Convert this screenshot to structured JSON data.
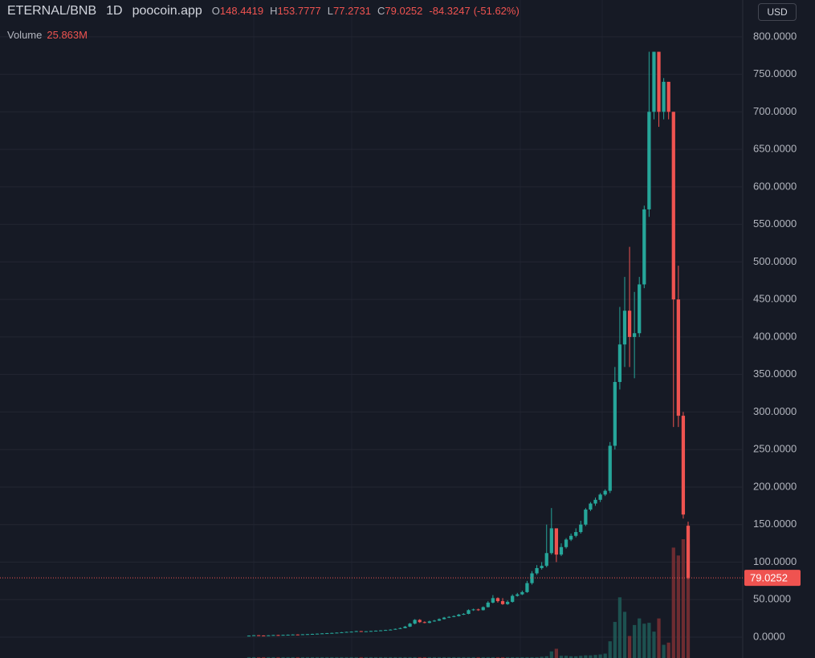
{
  "chart_data": {
    "type": "candlestick",
    "symbol": "ETERNAL/BNB",
    "interval": "1D",
    "source": "poocoin.app",
    "ohlc_labels": [
      "O",
      "H",
      "L",
      "C"
    ],
    "change": -84.3247,
    "change_percent": {
      "value": -51.62,
      "label": "(-51.62%)"
    },
    "currency": "USD",
    "up_color": "#26a69a",
    "down_color": "#ef5350",
    "open": [
      1.8,
      2,
      2.5,
      2.2,
      2,
      2.4,
      2.8,
      2.5,
      3,
      3.2,
      3.5,
      3.3,
      3.8,
      4,
      4.3,
      4.6,
      5,
      5.3,
      5.6,
      6,
      6.5,
      7,
      7.3,
      8,
      7.2,
      7.8,
      8.2,
      8.6,
      9,
      9.5,
      10,
      11,
      12,
      14,
      18,
      23,
      20,
      19,
      21,
      22,
      24,
      26,
      27,
      28,
      30,
      31,
      36,
      37,
      36,
      40,
      46,
      52,
      48,
      44,
      47,
      55,
      57,
      60,
      72,
      85,
      92,
      95,
      112,
      145,
      110,
      120,
      130,
      135,
      140,
      150,
      170,
      178,
      183,
      190,
      195,
      255,
      340,
      390,
      435,
      400,
      405,
      470,
      570,
      700,
      780,
      700,
      740,
      700,
      450,
      295,
      148.4419
    ],
    "high": [
      2.3,
      2.8,
      2.7,
      2.4,
      2.6,
      3,
      3,
      3.3,
      3.5,
      3.8,
      3.7,
      4,
      4.3,
      4.6,
      4.9,
      5.3,
      5.6,
      5.9,
      6.3,
      6.8,
      7.3,
      7.6,
      8.4,
      8.2,
      8,
      8.5,
      8.9,
      9.3,
      9.8,
      10.5,
      11.5,
      12.8,
      15,
      19,
      24,
      24,
      21,
      22,
      23,
      25,
      27,
      28,
      29,
      31,
      32,
      37,
      38,
      38,
      41,
      48,
      56,
      53,
      52,
      49,
      57,
      59,
      62,
      75,
      88,
      96,
      100,
      150,
      172,
      140,
      125,
      132,
      138,
      145,
      155,
      172,
      180,
      186,
      192,
      197,
      260,
      360,
      440,
      480,
      520,
      460,
      480,
      575,
      780,
      780,
      780,
      745,
      740,
      700,
      495,
      300,
      153.7777
    ],
    "low": [
      1.6,
      1.8,
      2,
      1.8,
      1.9,
      2.2,
      2.3,
      2.3,
      2.8,
      3,
      3,
      3.1,
      3.6,
      3.8,
      4.1,
      4.4,
      4.8,
      5,
      5.4,
      5.8,
      6.3,
      6.8,
      7.1,
      7,
      7,
      7.6,
      8,
      8.4,
      8.8,
      9.3,
      9.8,
      10.8,
      11.8,
      13.5,
      17,
      19,
      18.5,
      18.5,
      20.5,
      21.5,
      23.5,
      25.5,
      26.5,
      27.5,
      29.5,
      30.5,
      35,
      35,
      35.5,
      39.5,
      45,
      46,
      43,
      43,
      46,
      54,
      56,
      59,
      70,
      83,
      90,
      93,
      110,
      100,
      108,
      118,
      128,
      133,
      138,
      148,
      168,
      175,
      180,
      188,
      192,
      250,
      330,
      360,
      360,
      345,
      400,
      465,
      560,
      690,
      680,
      690,
      690,
      280,
      280,
      158,
      77.2731
    ],
    "close": [
      2,
      2.5,
      2.2,
      2,
      2.4,
      2.8,
      2.5,
      3,
      3.2,
      3.5,
      3.3,
      3.8,
      4,
      4.3,
      4.6,
      5,
      5.3,
      5.6,
      6,
      6.5,
      7,
      7.3,
      8,
      7.2,
      7.8,
      8.2,
      8.6,
      9,
      9.5,
      10,
      11,
      12,
      14,
      18,
      23,
      20,
      19,
      21,
      22,
      24,
      26,
      27,
      28,
      30,
      31,
      36,
      37,
      36,
      40,
      46,
      52,
      48,
      44,
      47,
      55,
      57,
      60,
      72,
      85,
      92,
      95,
      112,
      145,
      110,
      120,
      130,
      135,
      140,
      150,
      170,
      178,
      183,
      190,
      195,
      255,
      340,
      390,
      435,
      400,
      405,
      470,
      570,
      700,
      780,
      700,
      740,
      700,
      450,
      295,
      163.35,
      79.0252
    ],
    "volume": {
      "name": "Volume",
      "up_color": "#1e5c58",
      "down_color": "#7e3034",
      "values": [
        0.2,
        0.2,
        0.2,
        0.2,
        0.2,
        0.2,
        0.2,
        0.2,
        0.2,
        0.2,
        0.2,
        0.2,
        0.2,
        0.2,
        0.2,
        0.2,
        0.2,
        0.2,
        0.2,
        0.2,
        0.2,
        0.2,
        0.2,
        0.2,
        0.2,
        0.2,
        0.2,
        0.2,
        0.2,
        0.2,
        0.2,
        0.2,
        0.2,
        0.2,
        0.2,
        0.2,
        0.2,
        0.2,
        0.2,
        0.2,
        0.2,
        0.2,
        0.2,
        0.2,
        0.2,
        0.2,
        0.2,
        0.2,
        0.2,
        0.2,
        0.2,
        0.2,
        0.2,
        0.2,
        0.2,
        0.2,
        0.2,
        0.2,
        0.2,
        0.2,
        0.3,
        0.4,
        1.5,
        2.1,
        0.5,
        0.5,
        0.4,
        0.4,
        0.5,
        0.6,
        0.6,
        0.7,
        0.8,
        1.0,
        3.8,
        8.2,
        13.8,
        10.5,
        5,
        7.5,
        9,
        7.8,
        8,
        6,
        9,
        3,
        3.5,
        25.1,
        23.3,
        27,
        25.863
      ],
      "value_labels": [
        null,
        null,
        null,
        null,
        null,
        null,
        null,
        null,
        null,
        null,
        null,
        null,
        null,
        null,
        null,
        null,
        null,
        null,
        null,
        null,
        null,
        null,
        null,
        null,
        null,
        null,
        null,
        null,
        null,
        null,
        null,
        null,
        null,
        null,
        null,
        null,
        null,
        null,
        null,
        null,
        null,
        null,
        null,
        null,
        null,
        null,
        null,
        null,
        null,
        null,
        null,
        null,
        null,
        null,
        null,
        null,
        null,
        null,
        null,
        null,
        null,
        null,
        null,
        null,
        null,
        null,
        null,
        null,
        null,
        null,
        null,
        null,
        null,
        null,
        null,
        null,
        null,
        null,
        null,
        null,
        null,
        null,
        null,
        null,
        null,
        null,
        null,
        null,
        null,
        null,
        "25.863M"
      ]
    },
    "ylim": [
      -27.8,
      849
    ],
    "yticks": [
      {
        "value": 0,
        "label": "0.0000"
      },
      {
        "value": 50,
        "label": "50.0000"
      },
      {
        "value": 100,
        "label": "100.0000"
      },
      {
        "value": 150,
        "label": "150.0000"
      },
      {
        "value": 200,
        "label": "200.0000"
      },
      {
        "value": 250,
        "label": "250.0000"
      },
      {
        "value": 300,
        "label": "300.0000"
      },
      {
        "value": 350,
        "label": "350.0000"
      },
      {
        "value": 400,
        "label": "400.0000"
      },
      {
        "value": 450,
        "label": "450.0000"
      },
      {
        "value": 500,
        "label": "500.0000"
      },
      {
        "value": 550,
        "label": "550.0000"
      },
      {
        "value": 600,
        "label": "600.0000"
      },
      {
        "value": 650,
        "label": "650.0000"
      },
      {
        "value": 700,
        "label": "700.0000"
      },
      {
        "value": 750,
        "label": "750.0000"
      },
      {
        "value": 800,
        "label": "800.0000"
      }
    ],
    "last_price_label": "79.0252",
    "grid": true
  }
}
